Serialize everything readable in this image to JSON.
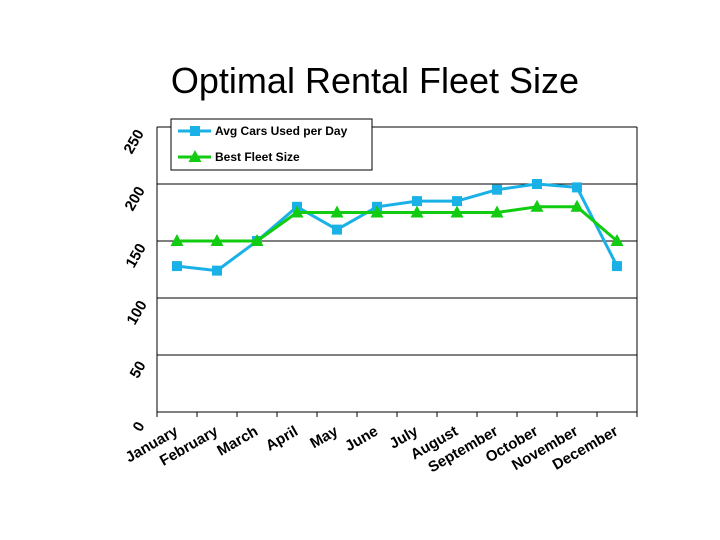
{
  "chart_data": {
    "type": "line",
    "title": "Optimal Rental Fleet Size",
    "xlabel": "",
    "ylabel": "",
    "categories": [
      "January",
      "February",
      "March",
      "April",
      "May",
      "June",
      "July",
      "August",
      "September",
      "October",
      "November",
      "December"
    ],
    "ylim": [
      0,
      250
    ],
    "yticks": [
      "0",
      "50",
      "100",
      "150",
      "200",
      "250"
    ],
    "grid": true,
    "legend_position": "top-left",
    "series": [
      {
        "name": "Avg Cars Used per Day",
        "color": "#1ab2e6",
        "marker": "square",
        "values": [
          128,
          124,
          150,
          180,
          160,
          180,
          185,
          185,
          195,
          200,
          197,
          128
        ]
      },
      {
        "name": "Best Fleet Size",
        "color": "#11cc11",
        "marker": "triangle",
        "values": [
          150,
          150,
          150,
          175,
          175,
          175,
          175,
          175,
          175,
          180,
          180,
          150
        ]
      }
    ]
  }
}
